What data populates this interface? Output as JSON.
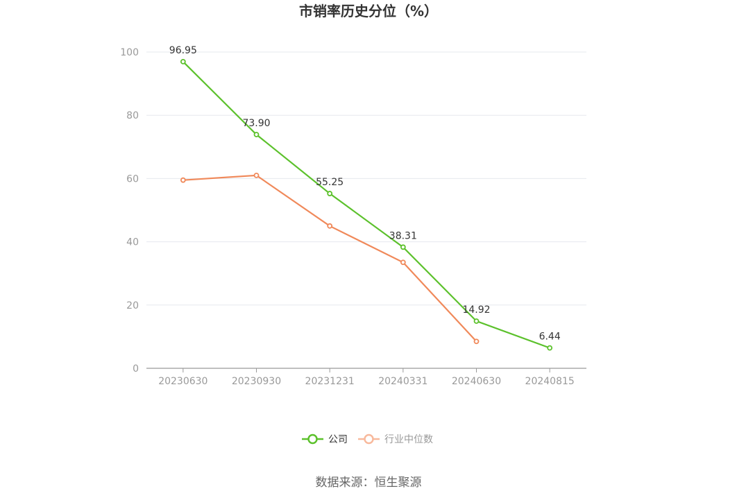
{
  "chart_data": {
    "type": "line",
    "title": "市销率历史分位（%）",
    "categories": [
      "20230630",
      "20230930",
      "20231231",
      "20240331",
      "20240630",
      "20240815"
    ],
    "series": [
      {
        "name": "公司",
        "color": "#5cc12c",
        "values": [
          96.95,
          73.9,
          55.25,
          38.31,
          14.92,
          6.44
        ],
        "labels": [
          "96.95",
          "73.90",
          "55.25",
          "38.31",
          "14.92",
          "6.44"
        ]
      },
      {
        "name": "行业中位数",
        "color": "#f0895a",
        "values": [
          59.5,
          61.0,
          45.0,
          33.5,
          8.5,
          null
        ]
      }
    ],
    "yticks": [
      "0",
      "20",
      "40",
      "60",
      "80",
      "100"
    ],
    "ylim": [
      0,
      100
    ],
    "grid": true,
    "legend": "bottom-center",
    "legend_colors": {
      "company": "#5cc12c",
      "industry": "#f8b99c"
    },
    "source": "数据来源：恒生聚源"
  }
}
